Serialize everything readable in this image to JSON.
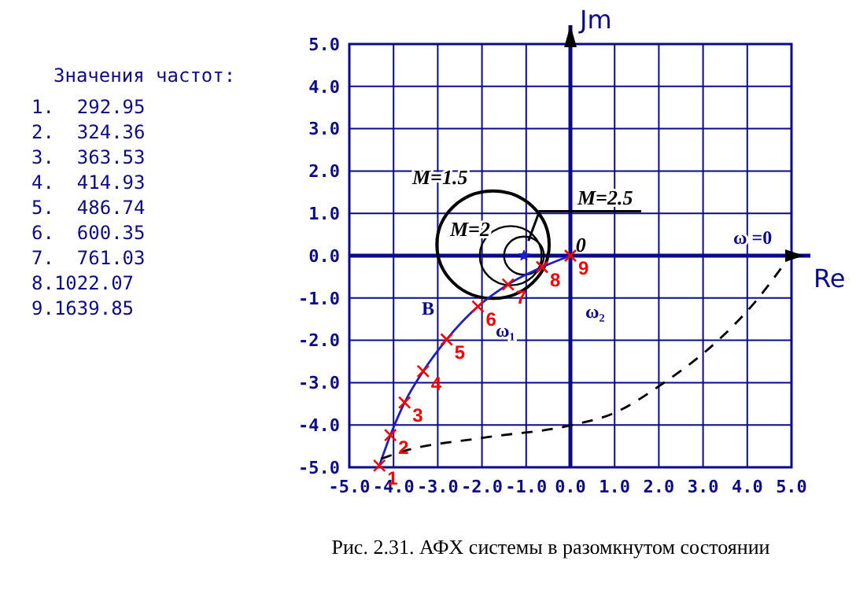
{
  "chart_data": {
    "type": "line",
    "title": "Рис. 2.31. АФХ системы в разомкнутом состоянии",
    "xlabel": "Re",
    "ylabel": "Jm",
    "xlim": [
      -5,
      5
    ],
    "ylim": [
      -5,
      5
    ],
    "xticks": [
      {
        "value": -5,
        "label": "-5.0"
      },
      {
        "value": -4,
        "label": "-4.0"
      },
      {
        "value": -3,
        "label": "-3.0"
      },
      {
        "value": -2,
        "label": "-2.0"
      },
      {
        "value": -1,
        "label": "-1.0"
      },
      {
        "value": 0,
        "label": "0.0"
      },
      {
        "value": 1,
        "label": "1.0"
      },
      {
        "value": 2,
        "label": "2.0"
      },
      {
        "value": 3,
        "label": "3.0"
      },
      {
        "value": 4,
        "label": "4.0"
      },
      {
        "value": 5,
        "label": "5.0"
      }
    ],
    "yticks": [
      {
        "value": -5,
        "label": "-5.0"
      },
      {
        "value": -4,
        "label": "-4.0"
      },
      {
        "value": -3,
        "label": "-3.0"
      },
      {
        "value": -2,
        "label": "-2.0"
      },
      {
        "value": -1,
        "label": "-1.0"
      },
      {
        "value": 0,
        "label": "0.0"
      },
      {
        "value": 1,
        "label": "1.0"
      },
      {
        "value": 2,
        "label": "2.0"
      },
      {
        "value": 3,
        "label": "3.0"
      },
      {
        "value": 4,
        "label": "4.0"
      },
      {
        "value": 5,
        "label": "5.0"
      }
    ],
    "grid": true,
    "series": [
      {
        "color": "#1c1cc8",
        "x": [
          -4.32,
          -4.07,
          -3.75,
          -3.33,
          -2.8,
          -2.09,
          -1.41,
          -0.64,
          0
        ],
        "values": [
          -4.96,
          -4.24,
          -3.47,
          -2.73,
          -1.98,
          -1.2,
          -0.68,
          -0.27,
          0
        ]
      },
      {
        "type": "scatter",
        "color": "#ff0000",
        "marker": "cross",
        "x": [
          -4.32,
          -4.07,
          -3.75,
          -3.33,
          -2.8,
          -2.09,
          -1.41,
          -0.64,
          0
        ],
        "values": [
          -4.96,
          -4.24,
          -3.47,
          -2.73,
          -1.98,
          -1.2,
          -0.68,
          -0.27,
          0
        ]
      },
      {
        "color": "#000000",
        "line_style": "dashed",
        "x": [
          -4.28,
          -3.81,
          -2.03,
          0,
          0.94,
          2.12,
          3.31,
          4.14,
          4.97
        ],
        "values": [
          -4.8,
          -4.63,
          -4.31,
          -4.01,
          -3.74,
          -3.0,
          -2.03,
          -1.14,
          0
        ]
      },
      {
        "type": "scatter",
        "color": "#1c1cc8",
        "marker": "star",
        "x": [
          -1.05
        ],
        "values": [
          0
        ]
      }
    ],
    "annotations": [
      "Значения частот:",
      "1.  292.95",
      "2.  324.36",
      "3.  363.53",
      "4.  414.93",
      "5.  486.74",
      "6.  600.35",
      "7.  761.03",
      "8.1022.07",
      "9.1639.85",
      "M=1.5",
      "M=2",
      "M=2.5",
      "ω =0",
      "ω₁",
      "ω₂",
      "В",
      {
        "text": "0",
        "x": 0.12,
        "y": 0.1
      },
      {
        "text": "1",
        "x": -4.32,
        "y": -4.96
      },
      {
        "text": "2",
        "x": -4.07,
        "y": -4.24
      },
      {
        "text": "3",
        "x": -3.75,
        "y": -3.47
      },
      {
        "text": "4",
        "x": -3.33,
        "y": -2.73
      },
      {
        "text": "5",
        "x": -2.8,
        "y": -1.98
      },
      {
        "text": "6",
        "x": -2.09,
        "y": -1.2
      },
      {
        "text": "7",
        "x": -1.41,
        "y": -0.68
      },
      {
        "text": "8",
        "x": -0.64,
        "y": -0.27
      },
      {
        "text": "9",
        "x": 0,
        "y": 0
      }
    ]
  }
}
